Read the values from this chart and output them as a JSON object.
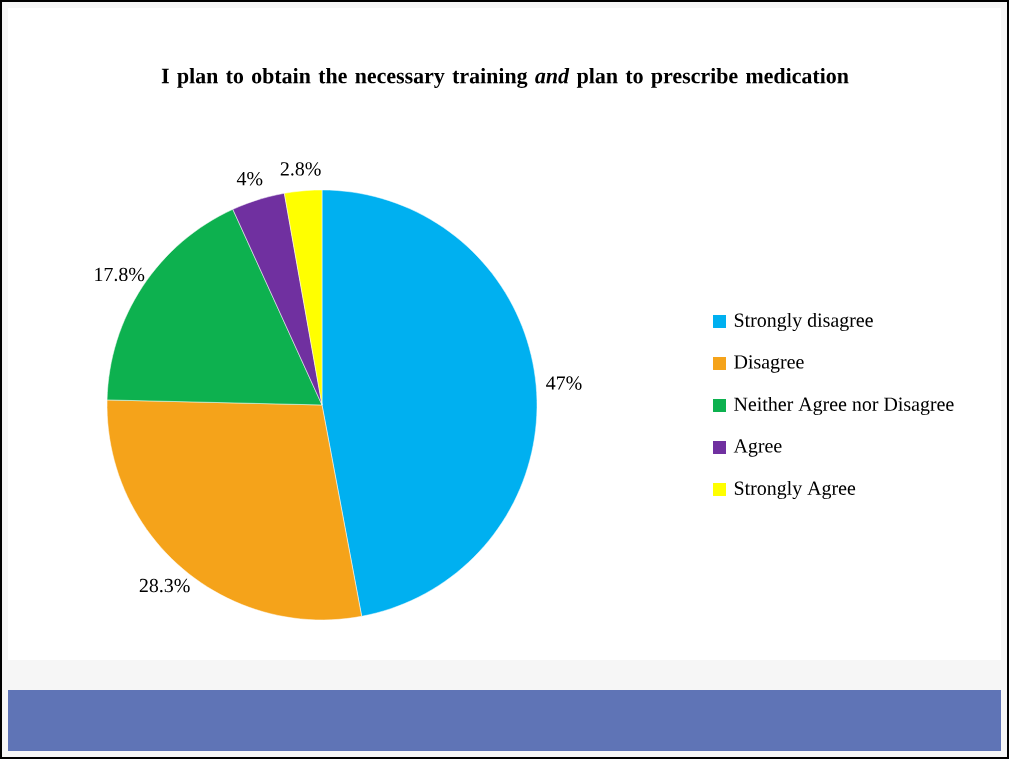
{
  "chart_data": {
    "type": "pie",
    "title": "I plan to obtain the necessary training *and* plan to prescribe medication",
    "categories": [
      "Strongly disagree",
      "Disagree",
      "Neither Agree nor Disagree",
      "Agree",
      "Strongly Agree"
    ],
    "values": [
      47,
      28.3,
      17.8,
      4,
      2.8
    ],
    "value_labels": [
      "47%",
      "28.3%",
      "17.8%",
      "4%",
      "2.8%"
    ],
    "colors": [
      "#00b0f0",
      "#f5a31a",
      "#0db14f",
      "#7030a0",
      "#ffff00"
    ],
    "legend": "right"
  }
}
